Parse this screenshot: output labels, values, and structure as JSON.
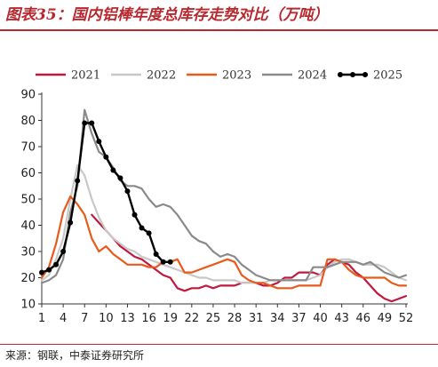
{
  "title": "图表35：国内铝棒年度总库存走势对比（万吨）",
  "source": "来源：钢联，中泰证券研究所",
  "chart_data": {
    "type": "line",
    "ylim": [
      10,
      90
    ],
    "xlim": [
      1,
      52
    ],
    "y_ticks": [
      10,
      20,
      30,
      40,
      50,
      60,
      70,
      80,
      90
    ],
    "x_ticks": [
      1,
      4,
      7,
      10,
      13,
      16,
      19,
      22,
      25,
      28,
      31,
      34,
      37,
      40,
      43,
      46,
      49,
      52
    ],
    "y_tick_labels": [
      "10",
      "20",
      "30",
      "40",
      "50",
      "60",
      "70",
      "80",
      "90"
    ],
    "x_tick_labels": [
      "1",
      "4",
      "7",
      "10",
      "13",
      "16",
      "19",
      "22",
      "25",
      "28",
      "31",
      "34",
      "37",
      "40",
      "43",
      "46",
      "49",
      "52"
    ],
    "legend_position": "top",
    "grid": false,
    "series": [
      {
        "name": "2021",
        "color": "#c0183f",
        "marker": false,
        "x": [
          8,
          9,
          10,
          11,
          12,
          13,
          14,
          15,
          16,
          17,
          18,
          19,
          20,
          21,
          22,
          23,
          24,
          25,
          26,
          27,
          28,
          29,
          30,
          31,
          32,
          33,
          34,
          35,
          36,
          37,
          38,
          39,
          40,
          41,
          42,
          43,
          44,
          45,
          46,
          47,
          48,
          49,
          50,
          51,
          52
        ],
        "y": [
          44,
          41,
          38,
          35,
          32,
          30,
          28,
          27,
          25,
          23,
          21,
          20,
          16,
          15,
          16,
          16,
          17,
          16,
          17,
          17,
          17,
          18,
          18,
          18,
          17,
          17,
          18,
          20,
          20,
          22,
          22,
          22,
          21,
          25,
          27,
          26,
          25,
          22,
          20,
          17,
          14,
          12,
          11,
          12,
          13
        ]
      },
      {
        "name": "2022",
        "color": "#c8c8c8",
        "marker": false,
        "x": [
          1,
          2,
          3,
          4,
          5,
          6,
          7,
          8,
          9,
          10,
          11,
          12,
          13,
          14,
          15,
          16,
          17,
          18,
          19,
          20,
          21,
          22,
          23,
          24,
          25,
          26,
          27,
          28,
          29,
          30,
          31,
          32,
          33,
          34,
          35,
          36,
          37,
          38,
          39,
          40,
          41,
          42,
          43,
          44,
          45,
          46,
          47,
          48,
          49,
          50,
          51,
          52
        ],
        "y": [
          19,
          21,
          27,
          35,
          50,
          63,
          59,
          50,
          43,
          38,
          35,
          33,
          31,
          30,
          28,
          27,
          26,
          25,
          24,
          23,
          22,
          21,
          20,
          20,
          19,
          19,
          19,
          19,
          18,
          18,
          18,
          18,
          19,
          19,
          19,
          19,
          19,
          19,
          20,
          21,
          24,
          26,
          27,
          27,
          26,
          25,
          25,
          25,
          24,
          22,
          20,
          19
        ]
      },
      {
        "name": "2023",
        "color": "#e85a1b",
        "marker": false,
        "x": [
          1,
          2,
          3,
          4,
          5,
          6,
          7,
          8,
          9,
          10,
          11,
          12,
          13,
          14,
          15,
          16,
          17,
          18,
          19,
          20,
          21,
          22,
          23,
          24,
          25,
          26,
          27,
          28,
          29,
          30,
          31,
          32,
          33,
          34,
          35,
          36,
          37,
          38,
          39,
          40,
          41,
          42,
          43,
          44,
          45,
          46,
          47,
          48,
          49,
          50,
          51,
          52
        ],
        "y": [
          20,
          24,
          33,
          45,
          51,
          48,
          44,
          35,
          30,
          32,
          29,
          27,
          25,
          25,
          25,
          24,
          24,
          26,
          26,
          27,
          22,
          22,
          23,
          24,
          25,
          26,
          27,
          26,
          21,
          19,
          18,
          18,
          17,
          16,
          16,
          16,
          17,
          17,
          17,
          17,
          27,
          27,
          26,
          23,
          21,
          20,
          20,
          20,
          20,
          18,
          17,
          17
        ]
      },
      {
        "name": "2024",
        "color": "#8a8a8a",
        "marker": false,
        "x": [
          1,
          2,
          3,
          4,
          5,
          6,
          7,
          8,
          9,
          10,
          11,
          12,
          13,
          14,
          15,
          16,
          17,
          18,
          19,
          20,
          21,
          22,
          23,
          24,
          25,
          26,
          27,
          28,
          29,
          30,
          31,
          32,
          33,
          34,
          35,
          36,
          37,
          38,
          39,
          40,
          41,
          42,
          43,
          44,
          45,
          46,
          47,
          48,
          49,
          50,
          51,
          52
        ],
        "y": [
          18,
          19,
          21,
          27,
          45,
          55,
          84,
          75,
          68,
          66,
          62,
          57,
          55,
          55,
          54,
          50,
          47,
          48,
          47,
          44,
          40,
          36,
          34,
          33,
          30,
          28,
          29,
          28,
          25,
          23,
          21,
          20,
          19,
          19,
          19,
          19,
          19,
          19,
          24,
          24,
          24,
          25,
          26,
          26,
          26,
          25,
          26,
          24,
          22,
          21,
          20,
          21
        ]
      },
      {
        "name": "2025",
        "color": "#000000",
        "marker": true,
        "x": [
          1,
          2,
          3,
          4,
          5,
          6,
          7,
          8,
          9,
          10,
          11,
          12,
          13,
          14,
          15,
          16,
          17,
          18,
          19
        ],
        "y": [
          22,
          23,
          25,
          30,
          41,
          57,
          79,
          79,
          72,
          66,
          61,
          58,
          53,
          44,
          39,
          37,
          29,
          26,
          26
        ]
      }
    ]
  }
}
